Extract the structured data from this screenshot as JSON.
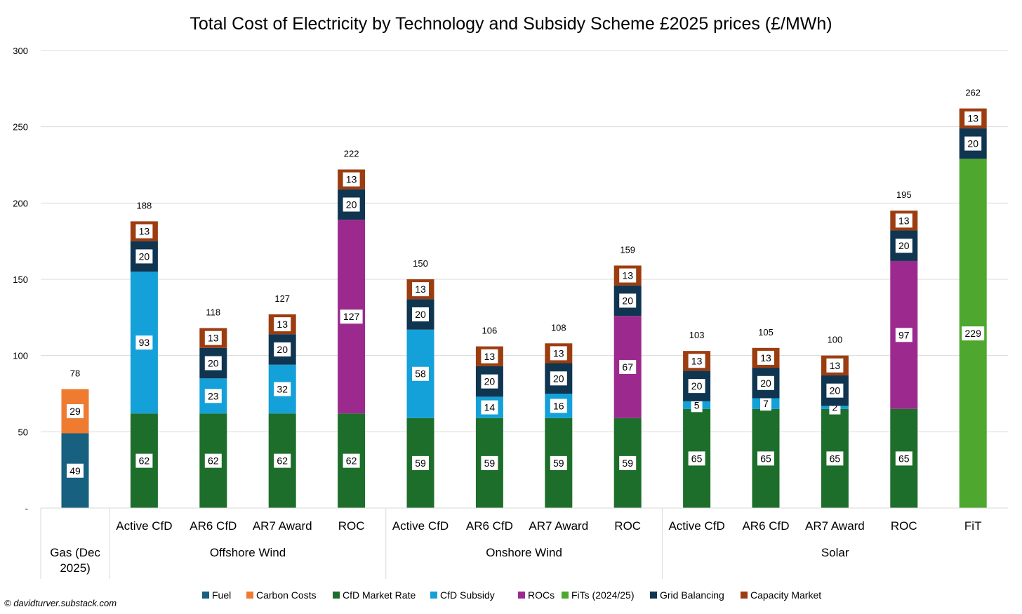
{
  "chart_data": {
    "type": "bar",
    "stacked": true,
    "title": "Total Cost of Electricity by Technology and Subsidy Scheme £2025 prices (£/MWh)",
    "ylim": [
      0,
      300
    ],
    "yticks": [
      "-",
      "50",
      "100",
      "150",
      "200",
      "250",
      "300"
    ],
    "grid": true,
    "legend_position": "bottom",
    "series": [
      {
        "name": "Fuel",
        "color": "#17607f"
      },
      {
        "name": "Carbon Costs",
        "color": "#ee7b30"
      },
      {
        "name": "CfD Market Rate",
        "color": "#1d6e2b"
      },
      {
        "name": "CfD Subsidy",
        "color": "#14a0d8"
      },
      {
        "name": "ROCs",
        "color": "#9c2a8e"
      },
      {
        "name": "FiTs (2024/25)",
        "color": "#4ea72e"
      },
      {
        "name": "Grid Balancing",
        "color": "#0f3550"
      },
      {
        "name": "Capacity Market",
        "color": "#9c3d10"
      }
    ],
    "groups": [
      {
        "label": "Gas (Dec 2025)",
        "bars": [
          {
            "category": "",
            "total": "78",
            "segments": [
              {
                "series": 0,
                "value": 49
              },
              {
                "series": 1,
                "value": 29
              }
            ]
          }
        ]
      },
      {
        "label": "Offshore Wind",
        "bars": [
          {
            "category": "Active CfD",
            "total": "188",
            "segments": [
              {
                "series": 2,
                "value": 62
              },
              {
                "series": 3,
                "value": 93
              },
              {
                "series": 6,
                "value": 20
              },
              {
                "series": 7,
                "value": 13
              }
            ]
          },
          {
            "category": "AR6 CfD",
            "total": "118",
            "segments": [
              {
                "series": 2,
                "value": 62
              },
              {
                "series": 3,
                "value": 23
              },
              {
                "series": 6,
                "value": 20
              },
              {
                "series": 7,
                "value": 13
              }
            ]
          },
          {
            "category": "AR7 Award",
            "total": "127",
            "segments": [
              {
                "series": 2,
                "value": 62
              },
              {
                "series": 3,
                "value": 32
              },
              {
                "series": 6,
                "value": 20
              },
              {
                "series": 7,
                "value": 13
              }
            ]
          },
          {
            "category": "ROC",
            "total": "222",
            "segments": [
              {
                "series": 2,
                "value": 62
              },
              {
                "series": 4,
                "value": 127
              },
              {
                "series": 6,
                "value": 20
              },
              {
                "series": 7,
                "value": 13
              }
            ]
          }
        ]
      },
      {
        "label": "Onshore Wind",
        "bars": [
          {
            "category": "Active CfD",
            "total": "150",
            "segments": [
              {
                "series": 2,
                "value": 59
              },
              {
                "series": 3,
                "value": 58
              },
              {
                "series": 6,
                "value": 20
              },
              {
                "series": 7,
                "value": 13
              }
            ]
          },
          {
            "category": "AR6 CfD",
            "total": "106",
            "segments": [
              {
                "series": 2,
                "value": 59
              },
              {
                "series": 3,
                "value": 14
              },
              {
                "series": 6,
                "value": 20
              },
              {
                "series": 7,
                "value": 13
              }
            ]
          },
          {
            "category": "AR7 Award",
            "total": "108",
            "segments": [
              {
                "series": 2,
                "value": 59
              },
              {
                "series": 3,
                "value": 16
              },
              {
                "series": 6,
                "value": 20
              },
              {
                "series": 7,
                "value": 13
              }
            ]
          },
          {
            "category": "ROC",
            "total": "159",
            "segments": [
              {
                "series": 2,
                "value": 59
              },
              {
                "series": 4,
                "value": 67
              },
              {
                "series": 6,
                "value": 20
              },
              {
                "series": 7,
                "value": 13
              }
            ]
          }
        ]
      },
      {
        "label": "Solar",
        "bars": [
          {
            "category": "Active CfD",
            "total": "103",
            "segments": [
              {
                "series": 2,
                "value": 65
              },
              {
                "series": 3,
                "value": 5
              },
              {
                "series": 6,
                "value": 20
              },
              {
                "series": 7,
                "value": 13
              }
            ]
          },
          {
            "category": "AR6 CfD",
            "total": "105",
            "segments": [
              {
                "series": 2,
                "value": 65
              },
              {
                "series": 3,
                "value": 7
              },
              {
                "series": 6,
                "value": 20
              },
              {
                "series": 7,
                "value": 13
              }
            ]
          },
          {
            "category": "AR7 Award",
            "total": "100",
            "segments": [
              {
                "series": 2,
                "value": 65
              },
              {
                "series": 3,
                "value": 2
              },
              {
                "series": 6,
                "value": 20
              },
              {
                "series": 7,
                "value": 13
              }
            ]
          },
          {
            "category": "ROC",
            "total": "195",
            "segments": [
              {
                "series": 2,
                "value": 65
              },
              {
                "series": 4,
                "value": 97
              },
              {
                "series": 6,
                "value": 20
              },
              {
                "series": 7,
                "value": 13
              }
            ]
          },
          {
            "category": "FiT",
            "total": "262",
            "segments": [
              {
                "series": 5,
                "value": 229
              },
              {
                "series": 6,
                "value": 20
              },
              {
                "series": 7,
                "value": 13
              }
            ]
          }
        ]
      }
    ]
  },
  "credit": "© davidturver.substack.com"
}
